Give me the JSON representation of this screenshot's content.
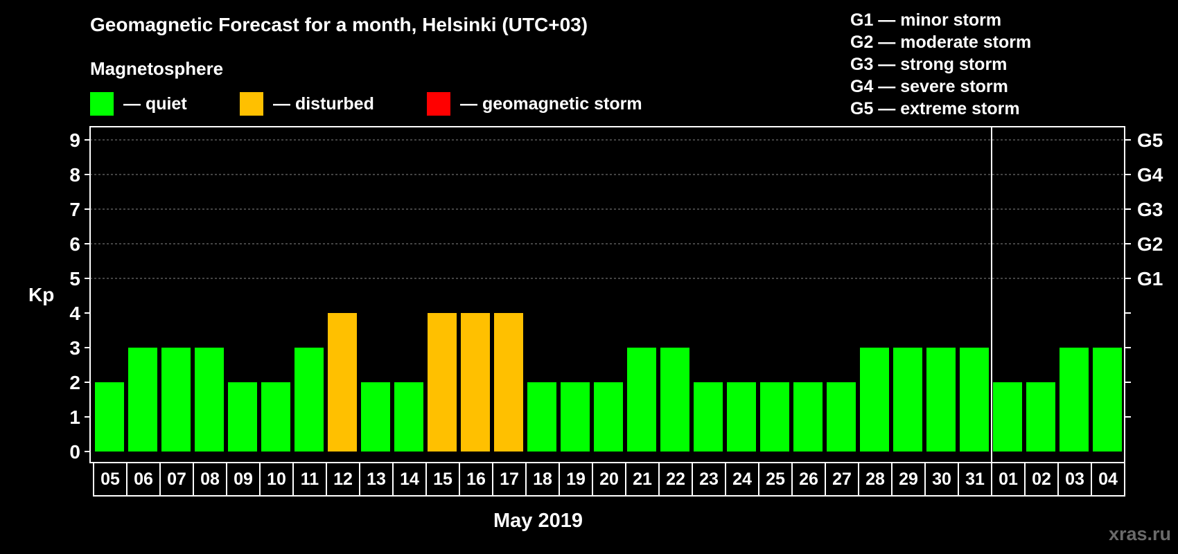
{
  "title": "Geomagnetic Forecast for a month, Helsinki (UTC+03)",
  "subtitle": "Magnetosphere",
  "legend": [
    {
      "label": "— quiet",
      "color": "#00ff00"
    },
    {
      "label": "— disturbed",
      "color": "#ffc000"
    },
    {
      "label": "— geomagnetic storm",
      "color": "#ff0000"
    }
  ],
  "g_legend": [
    "G1 — minor storm",
    "G2 — moderate storm",
    "G3 — strong storm",
    "G4 — severe storm",
    "G5 — extreme storm"
  ],
  "watermark": "xras.ru",
  "chart_data": {
    "type": "bar",
    "title": "Geomagnetic Forecast for a month, Helsinki (UTC+03)",
    "xlabel": "May 2019",
    "ylabel": "Kp",
    "ylim": [
      0,
      9
    ],
    "yticks": [
      "0",
      "1",
      "2",
      "3",
      "4",
      "5",
      "6",
      "7",
      "8",
      "9"
    ],
    "g_ticks": [
      {
        "kp": 5,
        "label": "G1"
      },
      {
        "kp": 6,
        "label": "G2"
      },
      {
        "kp": 7,
        "label": "G3"
      },
      {
        "kp": 8,
        "label": "G4"
      },
      {
        "kp": 9,
        "label": "G5"
      }
    ],
    "grid_levels": [
      5,
      6,
      7,
      8,
      9
    ],
    "month_separator_after": "31",
    "categories": [
      "05",
      "06",
      "07",
      "08",
      "09",
      "10",
      "11",
      "12",
      "13",
      "14",
      "15",
      "16",
      "17",
      "18",
      "19",
      "20",
      "21",
      "22",
      "23",
      "24",
      "25",
      "26",
      "27",
      "28",
      "29",
      "30",
      "31",
      "01",
      "02",
      "03",
      "04"
    ],
    "values": [
      2,
      3,
      3,
      3,
      2,
      2,
      3,
      4,
      2,
      2,
      4,
      4,
      4,
      2,
      2,
      2,
      3,
      3,
      2,
      2,
      2,
      2,
      2,
      3,
      3,
      3,
      3,
      2,
      2,
      3,
      3
    ],
    "status": [
      "quiet",
      "quiet",
      "quiet",
      "quiet",
      "quiet",
      "quiet",
      "quiet",
      "disturbed",
      "quiet",
      "quiet",
      "disturbed",
      "disturbed",
      "disturbed",
      "quiet",
      "quiet",
      "quiet",
      "quiet",
      "quiet",
      "quiet",
      "quiet",
      "quiet",
      "quiet",
      "quiet",
      "quiet",
      "quiet",
      "quiet",
      "quiet",
      "quiet",
      "quiet",
      "quiet",
      "quiet"
    ],
    "colors": {
      "quiet": "#00ff00",
      "disturbed": "#ffc000",
      "storm": "#ff0000"
    }
  }
}
